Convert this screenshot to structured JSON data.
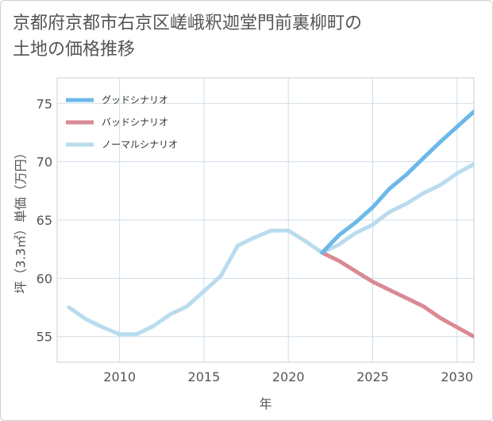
{
  "title_line1": "京都府京都市右京区嵯峨釈迦堂門前裏柳町の",
  "title_line2": "土地の価格推移",
  "chart_data": {
    "type": "line",
    "xlabel": "年",
    "ylabel": "坪（3.3㎡）単価（万円）",
    "xlim": [
      2006.3,
      2031
    ],
    "ylim": [
      52.8,
      77.2
    ],
    "xticks": [
      2010,
      2015,
      2020,
      2025,
      2030
    ],
    "yticks": [
      55,
      60,
      65,
      70,
      75
    ],
    "grid": true,
    "legend_position": "top-left",
    "series": [
      {
        "name": "グッドシナリオ",
        "color": "#6cb8ea",
        "x": [
          2022,
          2023,
          2024,
          2025,
          2026,
          2027,
          2028,
          2029,
          2030,
          2031
        ],
        "y": [
          62.2,
          63.7,
          64.8,
          66.1,
          67.7,
          68.9,
          70.3,
          71.7,
          73.0,
          74.3
        ]
      },
      {
        "name": "バッドシナリオ",
        "color": "#d98a93",
        "x": [
          2022,
          2023,
          2024,
          2025,
          2026,
          2027,
          2028,
          2029,
          2030,
          2031
        ],
        "y": [
          62.2,
          61.5,
          60.6,
          59.7,
          59.0,
          58.3,
          57.6,
          56.6,
          55.8,
          55.0
        ]
      },
      {
        "name": "ノーマルシナリオ",
        "color": "#b9dcee",
        "x": [
          2007,
          2008,
          2009,
          2010,
          2011,
          2012,
          2013,
          2014,
          2015,
          2016,
          2017,
          2018,
          2019,
          2020,
          2021,
          2022,
          2023,
          2024,
          2025,
          2026,
          2027,
          2028,
          2029,
          2030,
          2031
        ],
        "y": [
          57.5,
          56.5,
          55.8,
          55.2,
          55.2,
          55.9,
          56.9,
          57.6,
          58.9,
          60.2,
          62.8,
          63.5,
          64.1,
          64.1,
          63.2,
          62.2,
          62.9,
          63.9,
          64.6,
          65.7,
          66.4,
          67.3,
          68.0,
          69.0,
          69.8
        ]
      }
    ]
  }
}
